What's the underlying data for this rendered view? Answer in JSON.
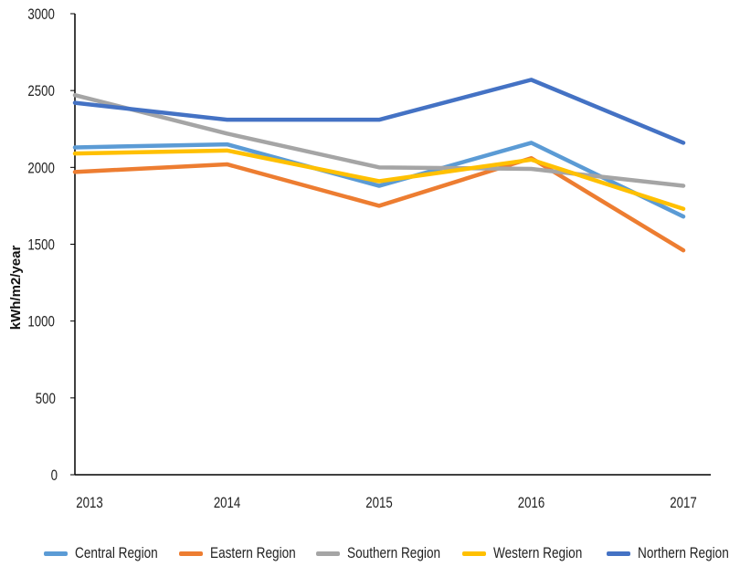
{
  "chart_data": {
    "type": "line",
    "title": "",
    "xlabel": "",
    "ylabel": "kWh/m2/year",
    "categories": [
      "2013",
      "2014",
      "2015",
      "2016",
      "2017"
    ],
    "ylim": [
      0,
      3000
    ],
    "yticks": [
      0,
      500,
      1000,
      1500,
      2000,
      2500,
      3000
    ],
    "grid": false,
    "legend_position": "bottom",
    "series": [
      {
        "name": "Central Region",
        "color": "#5B9BD5",
        "values": [
          2130,
          2150,
          1880,
          2160,
          1680
        ]
      },
      {
        "name": "Eastern Region",
        "color": "#ED7D31",
        "values": [
          1970,
          2020,
          1750,
          2060,
          1460
        ]
      },
      {
        "name": "Southern Region",
        "color": "#A5A5A5",
        "values": [
          2470,
          2220,
          2000,
          1990,
          1880
        ]
      },
      {
        "name": "Western Region",
        "color": "#FFC000",
        "values": [
          2090,
          2110,
          1910,
          2050,
          1730
        ]
      },
      {
        "name": "Northern Region",
        "color": "#4472C4",
        "values": [
          2420,
          2310,
          2310,
          2570,
          2160
        ]
      }
    ]
  }
}
